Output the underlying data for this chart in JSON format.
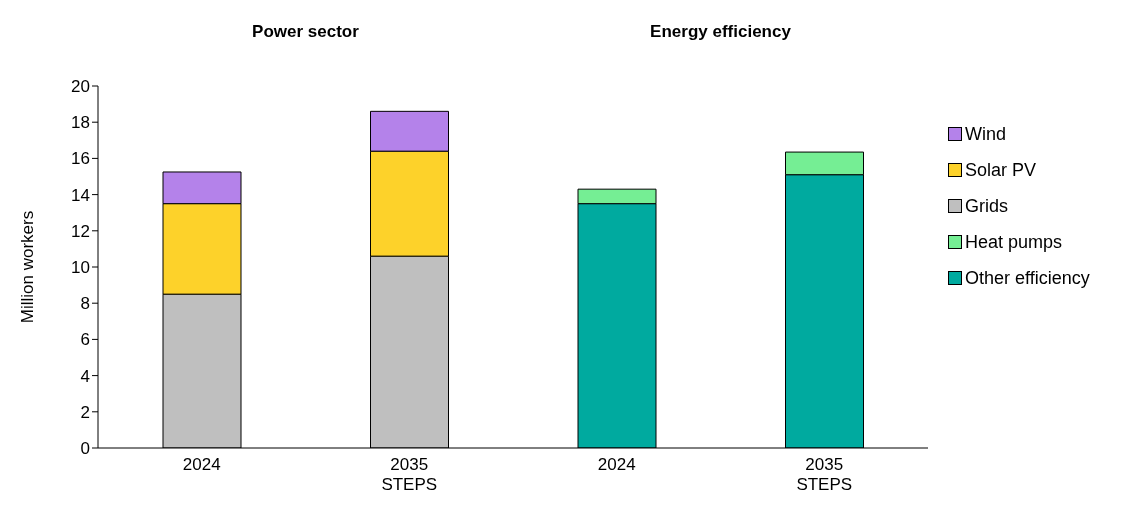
{
  "chart_data": {
    "type": "bar",
    "stacked": true,
    "ylabel": "Million workers",
    "categories": [
      "2024",
      "2035\nSTEPS",
      "2024",
      "2035\nSTEPS"
    ],
    "annotations": [
      {
        "text": "Power sector"
      },
      {
        "text": "Energy efficiency"
      }
    ],
    "series": [
      {
        "name": "Other efficiency",
        "color": "#00aa9f",
        "values": [
          null,
          null,
          13.5,
          15.1
        ]
      },
      {
        "name": "Heat pumps",
        "color": "#75ee94",
        "values": [
          null,
          null,
          0.8,
          1.25
        ]
      },
      {
        "name": "Grids",
        "color": "#bfbfbf",
        "values": [
          8.5,
          10.6,
          null,
          null
        ]
      },
      {
        "name": "Solar PV",
        "color": "#fdd22a",
        "values": [
          5.0,
          5.8,
          null,
          null
        ]
      },
      {
        "name": "Wind",
        "color": "#b482ea",
        "values": [
          1.75,
          2.2,
          null,
          null
        ]
      }
    ],
    "ylim": [
      0,
      20
    ],
    "yticks": [
      0,
      2,
      4,
      6,
      8,
      10,
      12,
      14,
      16,
      18,
      20
    ],
    "legend": "right"
  }
}
